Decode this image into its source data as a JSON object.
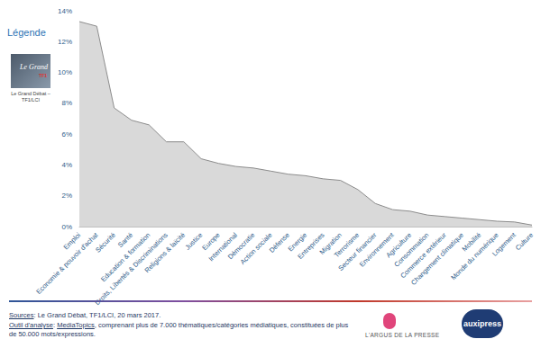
{
  "chart_data": {
    "type": "area",
    "categories": [
      "Emploi",
      "Economie & pouvoir d'achat",
      "Sécurité",
      "Santé",
      "Education & formation",
      "Droits, Libertés & Discriminations",
      "Religions & laïcité",
      "Justice",
      "Europe",
      "International",
      "Démocratie",
      "Action sociale",
      "Défense",
      "Energie",
      "Entreprises",
      "Migration",
      "Terrorisme",
      "Secteur financier",
      "Environnement",
      "Agriculture",
      "Consommation",
      "Commerce extérieur",
      "Changement climatique",
      "Mobilité",
      "Monde du numérique",
      "Logement",
      "Culture"
    ],
    "values": [
      13.3,
      13.0,
      7.7,
      6.9,
      6.6,
      5.5,
      5.5,
      4.4,
      4.1,
      3.9,
      3.8,
      3.6,
      3.4,
      3.3,
      3.1,
      3.0,
      2.4,
      1.5,
      1.1,
      1.0,
      0.75,
      0.65,
      0.55,
      0.45,
      0.35,
      0.3,
      0.1
    ],
    "color": "#d9d9d9",
    "ylim": [
      0,
      14
    ],
    "yticks": [
      {
        "value": 0,
        "label": "0%"
      },
      {
        "value": 2,
        "label": "2%"
      },
      {
        "value": 4,
        "label": "4%"
      },
      {
        "value": 6,
        "label": "6%"
      },
      {
        "value": 8,
        "label": "8%"
      },
      {
        "value": 10,
        "label": "10%"
      },
      {
        "value": 12,
        "label": "12%"
      },
      {
        "value": 14,
        "label": "14%"
      }
    ],
    "grid": false
  },
  "legend_title": "Légende",
  "legend_image_text": "Le Grand",
  "legend_image_subtext": "TF1",
  "legend_caption": "Le Grand Débat – TF1/LCI",
  "sources_label": "Sources",
  "sources_text": ": Le Grand Débat, TF1/LCI, 20 mars 2017.",
  "tool_label": "Outil d'analyse",
  "tool_sep": ": ",
  "tool_name": "MediaTopics",
  "tool_text": ", comprenant plus de 7.000 thématiques/catégories médiatiques, constituées de plus de 50.000 mots/expressions.",
  "logo_1": "L'ARGUS DE LA PRESSE",
  "logo_2": "auxipress"
}
